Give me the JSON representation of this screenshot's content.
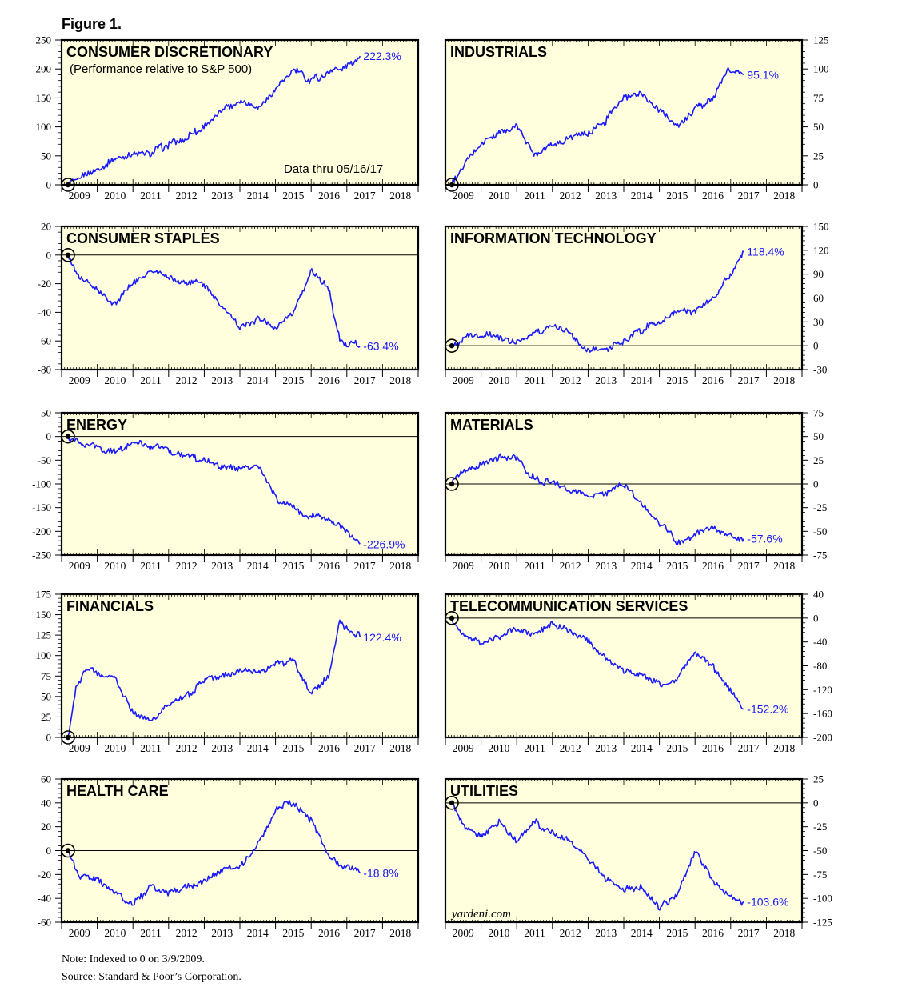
{
  "figure_title": "Figure 1.",
  "note": "Note: Indexed to 0 on 3/9/2009.",
  "source": "Source: Standard & Poor’s Corporation.",
  "data_thru": "Data thru 05/16/17",
  "watermark": "yardeni.com",
  "line_color": "#1a1aff",
  "panel_bg": "#ffffdd",
  "chart_data": [
    {
      "type": "line",
      "title": "CONSUMER DISCRETIONARY",
      "subtitle": "(Performance relative to S&P 500)",
      "end_label": "222.3%",
      "ylim": [
        0,
        250
      ],
      "yticks": [
        0,
        50,
        100,
        150,
        200,
        250
      ],
      "axis_side": "left",
      "years": [
        "2009",
        "2010",
        "2011",
        "2012",
        "2013",
        "2014",
        "2015",
        "2016",
        "2017",
        "2018"
      ],
      "baseline": null,
      "x": [
        2009.18,
        2009.5,
        2010.0,
        2010.5,
        2011.0,
        2011.5,
        2012.0,
        2012.5,
        2013.0,
        2013.5,
        2014.0,
        2014.5,
        2015.0,
        2015.5,
        2016.0,
        2016.5,
        2017.0,
        2017.37
      ],
      "values": [
        0,
        12,
        25,
        42,
        50,
        55,
        70,
        82,
        100,
        130,
        145,
        135,
        165,
        200,
        180,
        195,
        205,
        222.3
      ]
    },
    {
      "type": "line",
      "title": "INDUSTRIALS",
      "end_label": "95.1%",
      "ylim": [
        0,
        125
      ],
      "yticks": [
        0,
        25,
        50,
        75,
        100,
        125
      ],
      "axis_side": "right",
      "years": [
        "2009",
        "2010",
        "2011",
        "2012",
        "2013",
        "2014",
        "2015",
        "2016",
        "2017",
        "2018"
      ],
      "baseline": null,
      "x": [
        2009.18,
        2009.5,
        2010.0,
        2010.5,
        2011.0,
        2011.5,
        2012.0,
        2012.5,
        2013.0,
        2013.5,
        2014.0,
        2014.5,
        2015.0,
        2015.5,
        2016.0,
        2016.5,
        2016.9,
        2017.37
      ],
      "values": [
        0,
        15,
        35,
        45,
        50,
        27,
        35,
        40,
        45,
        55,
        75,
        80,
        65,
        50,
        65,
        75,
        100,
        95.1
      ]
    },
    {
      "type": "line",
      "title": "CONSUMER STAPLES",
      "end_label": "-63.4%",
      "ylim": [
        -80,
        20
      ],
      "yticks": [
        -80,
        -60,
        -40,
        -20,
        0,
        20
      ],
      "axis_side": "left",
      "years": [
        "2009",
        "2010",
        "2011",
        "2012",
        "2013",
        "2014",
        "2015",
        "2016",
        "2017",
        "2018"
      ],
      "baseline": 0,
      "x": [
        2009.18,
        2009.5,
        2010.0,
        2010.5,
        2011.0,
        2011.5,
        2012.0,
        2012.5,
        2013.0,
        2013.5,
        2014.0,
        2014.5,
        2015.0,
        2015.5,
        2016.0,
        2016.5,
        2016.8,
        2017.37
      ],
      "values": [
        0,
        -15,
        -25,
        -35,
        -20,
        -10,
        -15,
        -20,
        -20,
        -35,
        -50,
        -45,
        -50,
        -40,
        -10,
        -25,
        -60,
        -63.4
      ]
    },
    {
      "type": "line",
      "title": "INFORMATION TECHNOLOGY",
      "end_label": "118.4%",
      "ylim": [
        -30,
        150
      ],
      "yticks": [
        -30,
        0,
        30,
        60,
        90,
        120,
        150
      ],
      "axis_side": "right",
      "years": [
        "2009",
        "2010",
        "2011",
        "2012",
        "2013",
        "2014",
        "2015",
        "2016",
        "2017",
        "2018"
      ],
      "baseline": 0,
      "x": [
        2009.18,
        2009.5,
        2010.0,
        2010.5,
        2011.0,
        2011.5,
        2012.0,
        2012.5,
        2013.0,
        2013.5,
        2014.0,
        2014.5,
        2015.0,
        2015.5,
        2016.0,
        2016.5,
        2017.0,
        2017.37
      ],
      "values": [
        0,
        10,
        15,
        12,
        5,
        15,
        25,
        15,
        -5,
        -5,
        5,
        20,
        30,
        45,
        40,
        60,
        90,
        118.4
      ]
    },
    {
      "type": "line",
      "title": "ENERGY",
      "end_label": "-226.9%",
      "ylim": [
        -250,
        50
      ],
      "yticks": [
        -250,
        -200,
        -150,
        -100,
        -50,
        0,
        50
      ],
      "axis_side": "left",
      "years": [
        "2009",
        "2010",
        "2011",
        "2012",
        "2013",
        "2014",
        "2015",
        "2016",
        "2017",
        "2018"
      ],
      "baseline": 0,
      "x": [
        2009.18,
        2009.5,
        2010.0,
        2010.5,
        2011.0,
        2011.5,
        2012.0,
        2012.5,
        2013.0,
        2013.5,
        2014.0,
        2014.5,
        2015.0,
        2015.5,
        2016.0,
        2016.5,
        2017.0,
        2017.37
      ],
      "values": [
        0,
        -15,
        -25,
        -30,
        -10,
        -20,
        -30,
        -40,
        -50,
        -60,
        -70,
        -60,
        -130,
        -150,
        -170,
        -175,
        -200,
        -226.9
      ]
    },
    {
      "type": "line",
      "title": "MATERIALS",
      "end_label": "-57.6%",
      "ylim": [
        -75,
        75
      ],
      "yticks": [
        -75,
        -50,
        -25,
        0,
        25,
        50,
        75
      ],
      "axis_side": "right",
      "years": [
        "2009",
        "2010",
        "2011",
        "2012",
        "2013",
        "2014",
        "2015",
        "2016",
        "2017",
        "2018"
      ],
      "baseline": 0,
      "x": [
        2009.18,
        2009.5,
        2010.0,
        2010.5,
        2011.0,
        2011.5,
        2012.0,
        2012.5,
        2013.0,
        2013.5,
        2014.0,
        2014.5,
        2015.0,
        2015.5,
        2016.0,
        2016.5,
        2017.0,
        2017.37
      ],
      "values": [
        0,
        15,
        20,
        30,
        25,
        5,
        0,
        -5,
        -15,
        -10,
        0,
        -20,
        -40,
        -60,
        -55,
        -45,
        -55,
        -57.6
      ]
    },
    {
      "type": "line",
      "title": "FINANCIALS",
      "end_label": "122.4%",
      "ylim": [
        0,
        175
      ],
      "yticks": [
        0,
        25,
        50,
        75,
        100,
        125,
        150,
        175
      ],
      "axis_side": "left",
      "years": [
        "2009",
        "2010",
        "2011",
        "2012",
        "2013",
        "2014",
        "2015",
        "2016",
        "2017",
        "2018"
      ],
      "baseline": null,
      "x": [
        2009.18,
        2009.4,
        2009.7,
        2010.0,
        2010.5,
        2011.0,
        2011.5,
        2012.0,
        2012.5,
        2013.0,
        2013.5,
        2014.0,
        2014.5,
        2015.0,
        2015.5,
        2016.0,
        2016.5,
        2016.8,
        2017.37
      ],
      "values": [
        0,
        60,
        85,
        80,
        70,
        30,
        20,
        40,
        50,
        70,
        75,
        80,
        80,
        90,
        95,
        55,
        75,
        140,
        122.4
      ]
    },
    {
      "type": "line",
      "title": "TELECOMMUNICATION SERVICES",
      "end_label": "-152.2%",
      "ylim": [
        -200,
        40
      ],
      "yticks": [
        -200,
        -160,
        -120,
        -80,
        -40,
        0,
        40
      ],
      "axis_side": "right",
      "years": [
        "2009",
        "2010",
        "2011",
        "2012",
        "2013",
        "2014",
        "2015",
        "2016",
        "2017",
        "2018"
      ],
      "baseline": 0,
      "x": [
        2009.18,
        2009.5,
        2010.0,
        2010.5,
        2011.0,
        2011.5,
        2012.0,
        2012.5,
        2013.0,
        2013.5,
        2014.0,
        2014.5,
        2015.0,
        2015.5,
        2016.0,
        2016.5,
        2017.0,
        2017.37
      ],
      "values": [
        0,
        -30,
        -40,
        -30,
        -20,
        -30,
        -10,
        -20,
        -40,
        -70,
        -85,
        -95,
        -110,
        -100,
        -60,
        -80,
        -120,
        -152.2
      ]
    },
    {
      "type": "line",
      "title": "HEALTH CARE",
      "end_label": "-18.8%",
      "ylim": [
        -60,
        60
      ],
      "yticks": [
        -60,
        -40,
        -20,
        0,
        20,
        40,
        60
      ],
      "axis_side": "left",
      "years": [
        "2009",
        "2010",
        "2011",
        "2012",
        "2013",
        "2014",
        "2015",
        "2016",
        "2017",
        "2018"
      ],
      "baseline": 0,
      "x": [
        2009.18,
        2009.5,
        2010.0,
        2010.5,
        2011.0,
        2011.5,
        2012.0,
        2012.5,
        2013.0,
        2013.5,
        2014.0,
        2014.5,
        2015.0,
        2015.5,
        2016.0,
        2016.5,
        2017.0,
        2017.37
      ],
      "values": [
        0,
        -20,
        -25,
        -35,
        -45,
        -30,
        -35,
        -30,
        -25,
        -15,
        -15,
        5,
        35,
        40,
        25,
        -5,
        -15,
        -18.8
      ]
    },
    {
      "type": "line",
      "title": "UTILITIES",
      "end_label": "-103.6%",
      "ylim": [
        -125,
        25
      ],
      "yticks": [
        -125,
        -100,
        -75,
        -50,
        -25,
        0,
        25
      ],
      "axis_side": "right",
      "years": [
        "2009",
        "2010",
        "2011",
        "2012",
        "2013",
        "2014",
        "2015",
        "2016",
        "2017",
        "2018"
      ],
      "baseline": 0,
      "x": [
        2009.18,
        2009.5,
        2010.0,
        2010.5,
        2011.0,
        2011.5,
        2012.0,
        2012.5,
        2013.0,
        2013.5,
        2014.0,
        2014.5,
        2015.0,
        2015.5,
        2016.0,
        2016.5,
        2017.0,
        2017.37
      ],
      "values": [
        0,
        -25,
        -35,
        -20,
        -40,
        -20,
        -30,
        -40,
        -60,
        -80,
        -90,
        -90,
        -110,
        -95,
        -50,
        -80,
        -100,
        -103.6
      ]
    }
  ]
}
